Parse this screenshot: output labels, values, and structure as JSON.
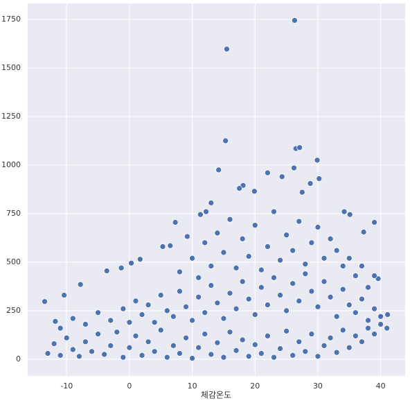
{
  "chart_data": {
    "type": "scatter",
    "x_label": "체감온도",
    "color": "#4c72b0",
    "grid": true,
    "xlim": [
      -16.2,
      43.9
    ],
    "ylim": [
      -86,
      1832
    ],
    "xticks": [
      -10,
      0,
      10,
      20,
      30,
      40
    ],
    "yticks": [
      0,
      250,
      500,
      750,
      1000,
      1250,
      1500,
      1750
    ],
    "x": [
      26.3,
      15.5,
      15.3,
      26.5,
      27.1,
      29.9,
      14.2,
      26.2,
      24.3,
      22.0,
      30.2,
      18.1,
      17.5,
      19.9,
      27.5,
      28.8,
      12.2,
      11.3,
      34.2,
      39.0,
      35.1,
      -13.5,
      -11.8,
      -10.4,
      -7.8,
      -3.6,
      -1.3,
      0.3,
      1.7,
      5.3,
      6.5,
      7.3,
      9.2,
      13.0,
      37.3,
      39.6,
      41.1,
      -13,
      -12,
      -11,
      -10,
      -9,
      -8,
      -7,
      -6,
      -5,
      -4,
      -3,
      -2,
      -1,
      0,
      1,
      2,
      3,
      4,
      5,
      6,
      7,
      8,
      9,
      10,
      11,
      12,
      13,
      14,
      15,
      16,
      17,
      18,
      19,
      20,
      21,
      22,
      23,
      24,
      25,
      26,
      27,
      28,
      29,
      30,
      31,
      32,
      33,
      34,
      35,
      36,
      37,
      38,
      39,
      40,
      41,
      -11,
      -9,
      -7,
      -5,
      -3,
      -1,
      0,
      1,
      2,
      3,
      4,
      5,
      6,
      7,
      8,
      9,
      10,
      11,
      12,
      13,
      14,
      15,
      16,
      17,
      18,
      19,
      20,
      21,
      22,
      23,
      24,
      25,
      26,
      27,
      28,
      29,
      30,
      31,
      32,
      33,
      34,
      35,
      36,
      37,
      38,
      39,
      40,
      8,
      10,
      11,
      12,
      13,
      14,
      15,
      16,
      17,
      18,
      19,
      20,
      21,
      22,
      23,
      24,
      25,
      26,
      27,
      28,
      29,
      30,
      31,
      32,
      33,
      34,
      35,
      36,
      37,
      38,
      39
    ],
    "y": [
      1745,
      1597,
      1125,
      1085,
      1090,
      1025,
      975,
      985,
      940,
      960,
      930,
      895,
      880,
      865,
      860,
      905,
      760,
      745,
      760,
      705,
      745,
      297,
      195,
      330,
      385,
      455,
      470,
      495,
      515,
      580,
      585,
      705,
      632,
      805,
      655,
      415,
      230,
      30,
      80,
      20,
      110,
      50,
      15,
      90,
      40,
      130,
      25,
      70,
      140,
      10,
      60,
      120,
      20,
      90,
      40,
      150,
      10,
      70,
      30,
      110,
      5,
      60,
      130,
      25,
      85,
      10,
      140,
      45,
      100,
      15,
      75,
      30,
      120,
      10,
      55,
      145,
      20,
      90,
      40,
      130,
      15,
      70,
      110,
      35,
      150,
      60,
      120,
      90,
      160,
      130,
      180,
      160,
      160,
      210,
      180,
      240,
      200,
      260,
      190,
      300,
      230,
      280,
      190,
      330,
      250,
      220,
      350,
      270,
      200,
      320,
      240,
      380,
      290,
      210,
      340,
      260,
      400,
      310,
      230,
      370,
      280,
      420,
      330,
      250,
      390,
      300,
      440,
      350,
      270,
      400,
      320,
      220,
      360,
      280,
      240,
      310,
      200,
      260,
      220,
      450,
      520,
      420,
      600,
      480,
      650,
      550,
      720,
      470,
      620,
      530,
      690,
      460,
      580,
      760,
      510,
      640,
      560,
      710,
      490,
      600,
      680,
      520,
      620,
      560,
      480,
      520,
      430,
      480,
      370,
      430
    ]
  }
}
